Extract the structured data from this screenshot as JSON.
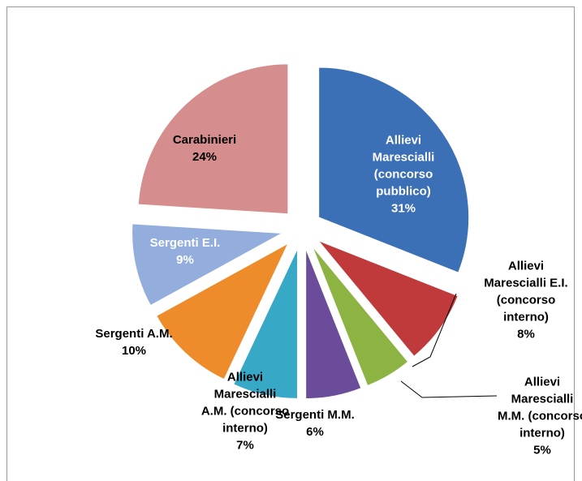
{
  "chart_data": {
    "type": "pie",
    "categories": [
      "Allievi Marescialli (concorso pubblico)",
      "Allievi Marescialli E.I. (concorso interno)",
      "Allievi Marescialli M.M. (concorso interno)",
      "Sergenti M.M.",
      "Allievi Marescialli A.M. (concorso interno)",
      "Sergenti A.M.",
      "Sergenti E.I.",
      "Carabinieri"
    ],
    "values": [
      31,
      8,
      5,
      6,
      7,
      10,
      9,
      24
    ],
    "value_labels": [
      "31%",
      "8%",
      "5%",
      "6%",
      "7%",
      "10%",
      "9%",
      "24%"
    ],
    "colors": [
      "#3b6fb6",
      "#c0393b",
      "#8db443",
      "#6b4c9a",
      "#37a8c6",
      "#ee8b2b",
      "#93aedc",
      "#d68d8d"
    ]
  }
}
